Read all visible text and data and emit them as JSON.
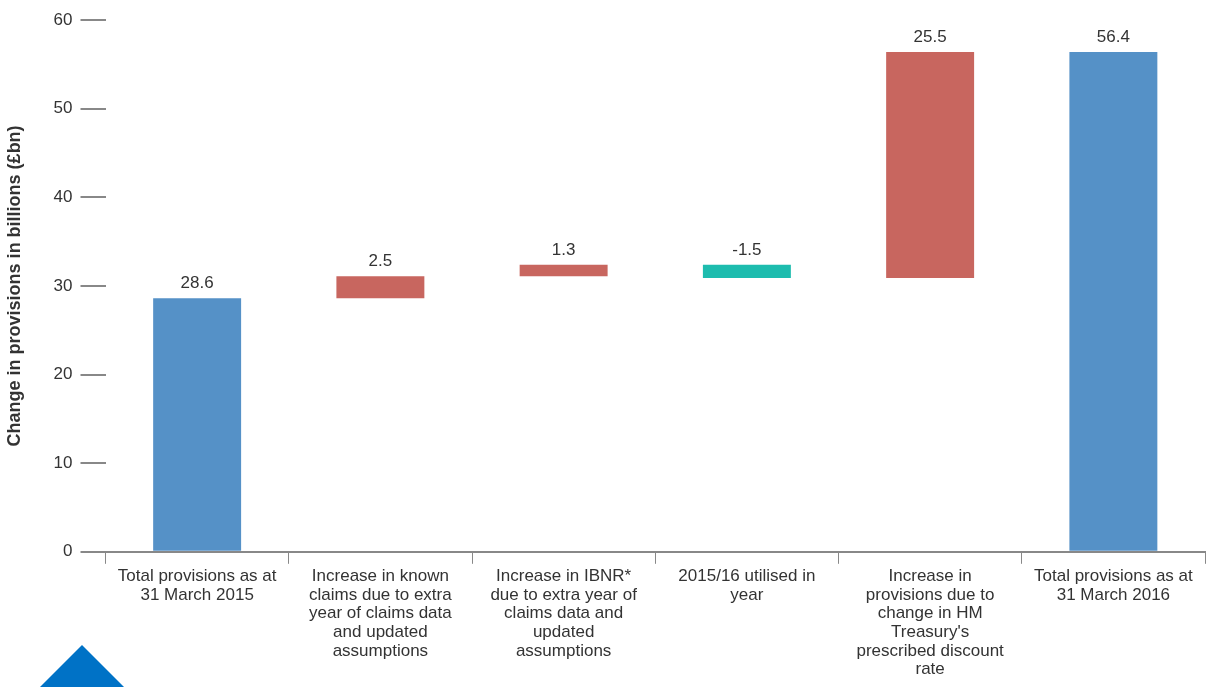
{
  "chart_data": {
    "type": "bar",
    "ylabel": "Change in provisions in billions (£bn)",
    "categories": [
      "Total provisions as at 31 March 2015",
      "Increase in known claims due to extra year of claims data and updated assumptions",
      "Increase in IBNR* due to extra year of claims data and updated assumptions",
      "2015/16 utilised in year",
      "Increase in provisions due to change in HM Treasury's prescribed discount rate",
      "Total provisions as at 31 March 2016"
    ],
    "values": [
      28.6,
      2.5,
      1.3,
      -1.5,
      25.5,
      56.4
    ],
    "base": [
      0,
      28.6,
      31.1,
      32.4,
      30.9,
      0
    ],
    "colors": [
      "#5591c7",
      "#c8665f",
      "#c8665f",
      "#1dbcae",
      "#c8665f",
      "#5591c7"
    ],
    "ylim": [
      0,
      60
    ],
    "yticks": [
      0,
      10,
      20,
      30,
      40,
      50,
      60
    ],
    "grid": false,
    "legend": false,
    "data_labels": true
  }
}
